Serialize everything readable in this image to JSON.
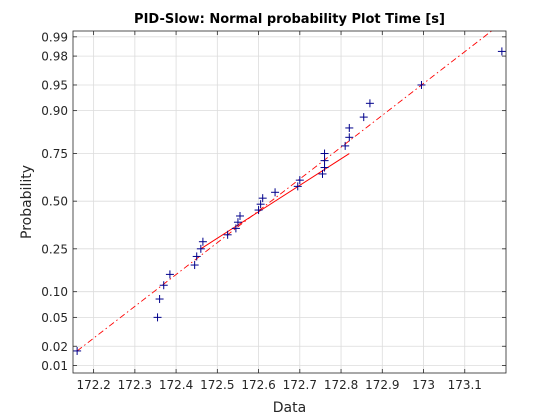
{
  "chart_data": {
    "type": "scatter",
    "title": "PID-Slow: Normal probability Plot Time [s]",
    "xlabel": "Data",
    "ylabel": "Probability",
    "xlim": [
      172.15,
      173.2
    ],
    "x_tick_labels": [
      "172.2",
      "172.3",
      "172.4",
      "172.5",
      "172.6",
      "172.7",
      "172.8",
      "172.9",
      "173",
      "173.1"
    ],
    "x_ticks": [
      172.2,
      172.3,
      172.4,
      172.5,
      172.6,
      172.7,
      172.8,
      172.9,
      173.0,
      173.1
    ],
    "y_scale": "normal-probability",
    "ylim": [
      0.0075,
      0.992
    ],
    "y_tick_labels": [
      "0.01",
      "0.02",
      "0.05",
      "0.10",
      "0.25",
      "0.50",
      "0.75",
      "0.90",
      "0.95",
      "0.98",
      "0.99"
    ],
    "y_ticks": [
      0.01,
      0.02,
      0.05,
      0.1,
      0.25,
      0.5,
      0.75,
      0.9,
      0.95,
      0.98,
      0.99
    ],
    "grid": true,
    "marker": "+",
    "marker_color": "#00008B",
    "fit_line_color": "#FF0000",
    "points": [
      {
        "x": 172.16,
        "y": 0.017
      },
      {
        "x": 172.355,
        "y": 0.05
      },
      {
        "x": 172.36,
        "y": 0.083
      },
      {
        "x": 172.37,
        "y": 0.117
      },
      {
        "x": 172.385,
        "y": 0.15
      },
      {
        "x": 172.445,
        "y": 0.183
      },
      {
        "x": 172.45,
        "y": 0.217
      },
      {
        "x": 172.46,
        "y": 0.25
      },
      {
        "x": 172.465,
        "y": 0.283
      },
      {
        "x": 172.525,
        "y": 0.317
      },
      {
        "x": 172.545,
        "y": 0.35
      },
      {
        "x": 172.55,
        "y": 0.383
      },
      {
        "x": 172.555,
        "y": 0.417
      },
      {
        "x": 172.6,
        "y": 0.45
      },
      {
        "x": 172.605,
        "y": 0.483
      },
      {
        "x": 172.61,
        "y": 0.517
      },
      {
        "x": 172.64,
        "y": 0.55
      },
      {
        "x": 172.695,
        "y": 0.583
      },
      {
        "x": 172.7,
        "y": 0.617
      },
      {
        "x": 172.755,
        "y": 0.65
      },
      {
        "x": 172.76,
        "y": 0.683
      },
      {
        "x": 172.76,
        "y": 0.717
      },
      {
        "x": 172.76,
        "y": 0.75
      },
      {
        "x": 172.81,
        "y": 0.783
      },
      {
        "x": 172.82,
        "y": 0.817
      },
      {
        "x": 172.82,
        "y": 0.85
      },
      {
        "x": 172.855,
        "y": 0.883
      },
      {
        "x": 172.87,
        "y": 0.917
      },
      {
        "x": 172.995,
        "y": 0.95
      },
      {
        "x": 173.19,
        "y": 0.983
      }
    ],
    "fit_line": {
      "solid": [
        [
          172.46,
          0.25
        ],
        [
          172.82,
          0.75
        ]
      ],
      "dashed_extent": [
        [
          172.16,
          0.017
        ],
        [
          173.165,
          0.992
        ]
      ]
    }
  }
}
